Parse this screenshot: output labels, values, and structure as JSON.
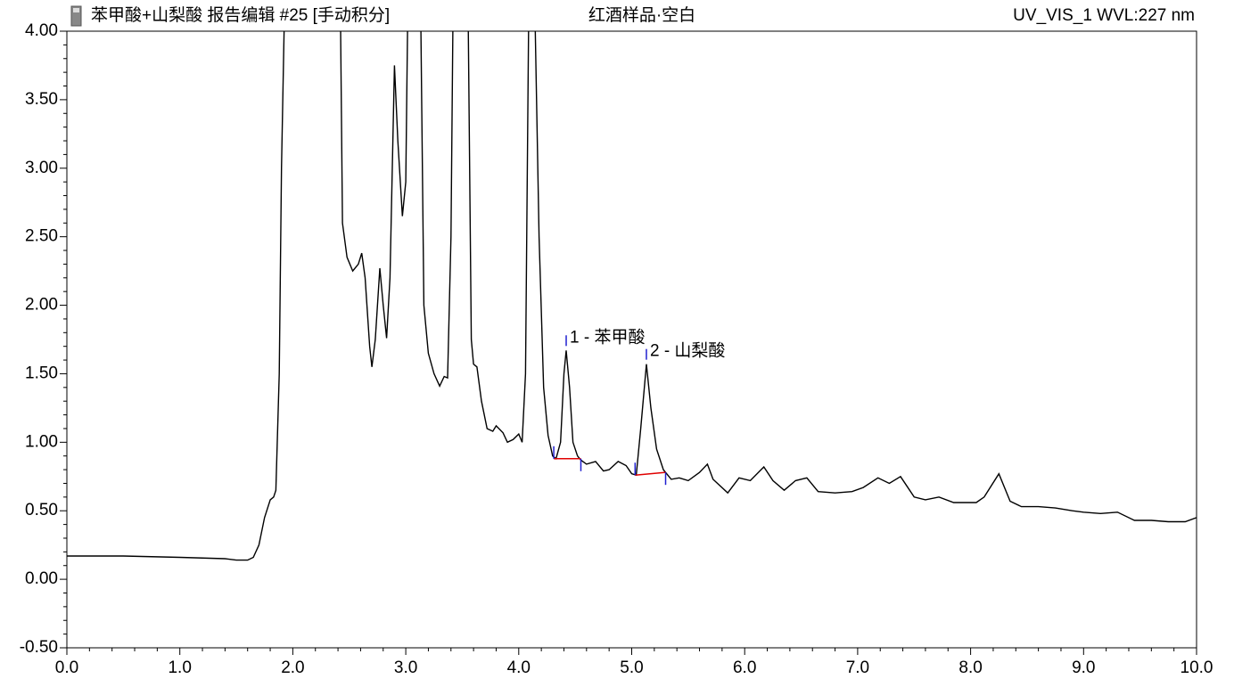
{
  "chart_data": {
    "type": "line",
    "title": "苯甲酸+山梨酸 报告编辑 #25 [手动积分]",
    "subtitle": "红酒样品·空白",
    "channel": "UV_VIS_1 WVL:227 nm",
    "color": "#000000",
    "x": [
      0.0,
      0.5,
      1.0,
      1.4,
      1.5,
      1.6,
      1.65,
      1.7,
      1.75,
      1.8,
      1.83,
      1.85,
      1.88,
      1.9,
      1.93,
      2.42,
      2.44,
      2.48,
      2.53,
      2.58,
      2.61,
      2.64,
      2.68,
      2.7,
      2.73,
      2.77,
      2.8,
      2.83,
      2.86,
      2.9,
      2.93,
      2.97,
      3.0,
      3.02,
      3.13,
      3.16,
      3.2,
      3.25,
      3.3,
      3.34,
      3.37,
      3.4,
      3.42,
      3.55,
      3.58,
      3.6,
      3.63,
      3.67,
      3.72,
      3.77,
      3.8,
      3.86,
      3.9,
      3.95,
      4.0,
      4.03,
      4.06,
      4.09,
      4.14,
      4.18,
      4.22,
      4.26,
      4.3,
      4.33,
      4.37,
      4.4,
      4.42,
      4.45,
      4.48,
      4.52,
      4.55,
      4.6,
      4.68,
      4.75,
      4.8,
      4.88,
      4.95,
      5.0,
      5.04,
      5.08,
      5.13,
      5.17,
      5.22,
      5.28,
      5.35,
      5.42,
      5.5,
      5.6,
      5.67,
      5.72,
      5.85,
      5.95,
      6.05,
      6.17,
      6.25,
      6.35,
      6.45,
      6.55,
      6.65,
      6.8,
      6.95,
      7.05,
      7.18,
      7.28,
      7.38,
      7.5,
      7.6,
      7.72,
      7.85,
      7.95,
      8.05,
      8.12,
      8.25,
      8.35,
      8.45,
      8.6,
      8.75,
      8.9,
      9.0,
      9.15,
      9.3,
      9.45,
      9.6,
      9.75,
      9.9,
      10.0
    ],
    "values": [
      0.17,
      0.17,
      0.16,
      0.15,
      0.14,
      0.14,
      0.16,
      0.25,
      0.45,
      0.58,
      0.6,
      0.65,
      1.5,
      3.0,
      4.3,
      4.3,
      2.6,
      2.35,
      2.25,
      2.3,
      2.38,
      2.2,
      1.7,
      1.55,
      1.75,
      2.27,
      2.0,
      1.76,
      2.2,
      3.75,
      3.2,
      2.65,
      2.9,
      4.3,
      4.3,
      2.0,
      1.65,
      1.5,
      1.41,
      1.48,
      1.47,
      2.5,
      4.3,
      4.3,
      1.75,
      1.57,
      1.55,
      1.3,
      1.1,
      1.08,
      1.12,
      1.07,
      1.0,
      1.02,
      1.06,
      1.0,
      1.5,
      4.3,
      4.3,
      2.5,
      1.4,
      1.05,
      0.9,
      0.88,
      1.0,
      1.5,
      1.67,
      1.4,
      1.0,
      0.9,
      0.87,
      0.84,
      0.86,
      0.79,
      0.8,
      0.86,
      0.83,
      0.77,
      0.76,
      1.1,
      1.57,
      1.25,
      0.95,
      0.8,
      0.73,
      0.74,
      0.72,
      0.78,
      0.84,
      0.73,
      0.63,
      0.74,
      0.72,
      0.82,
      0.72,
      0.65,
      0.72,
      0.74,
      0.64,
      0.63,
      0.64,
      0.67,
      0.74,
      0.7,
      0.75,
      0.6,
      0.58,
      0.6,
      0.56,
      0.56,
      0.56,
      0.6,
      0.77,
      0.57,
      0.53,
      0.53,
      0.52,
      0.5,
      0.49,
      0.48,
      0.49,
      0.43,
      0.43,
      0.42,
      0.42,
      0.45
    ],
    "xlim": [
      0,
      10
    ],
    "ylim": [
      -0.5,
      4.0
    ],
    "xticks": [
      {
        "value": 0,
        "label": "0.0"
      },
      {
        "value": 1,
        "label": "1.0"
      },
      {
        "value": 2,
        "label": "2.0"
      },
      {
        "value": 3,
        "label": "3.0"
      },
      {
        "value": 4,
        "label": "4.0"
      },
      {
        "value": 5,
        "label": "5.0"
      },
      {
        "value": 6,
        "label": "6.0"
      },
      {
        "value": 7,
        "label": "7.0"
      },
      {
        "value": 8,
        "label": "8.0"
      },
      {
        "value": 9,
        "label": "9.0"
      },
      {
        "value": 10,
        "label": "10.0"
      }
    ],
    "yticks": [
      {
        "value": -0.5,
        "label": "-0.50"
      },
      {
        "value": 0,
        "label": "0.00"
      },
      {
        "value": 0.5,
        "label": "0.50"
      },
      {
        "value": 1,
        "label": "1.00"
      },
      {
        "value": 1.5,
        "label": "1.50"
      },
      {
        "value": 2,
        "label": "2.00"
      },
      {
        "value": 2.5,
        "label": "2.50"
      },
      {
        "value": 3,
        "label": "3.00"
      },
      {
        "value": 3.5,
        "label": "3.50"
      },
      {
        "value": 4,
        "label": "4.00"
      }
    ],
    "peaks": [
      {
        "label": "1 - 苯甲酸",
        "apex": 4.42,
        "height": 1.67,
        "start": 4.31,
        "end": 4.55,
        "baseline_start": 0.88,
        "baseline_end": 0.88
      },
      {
        "label": "2 - 山梨酸",
        "apex": 5.13,
        "height": 1.57,
        "start": 5.03,
        "end": 5.3,
        "baseline_start": 0.76,
        "baseline_end": 0.78
      }
    ]
  }
}
